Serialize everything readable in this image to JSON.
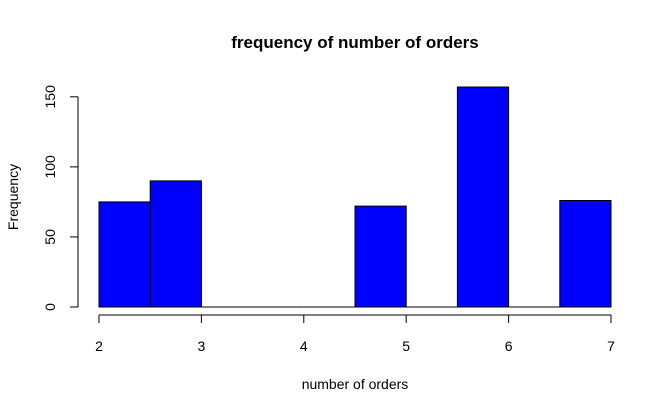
{
  "chart_data": {
    "type": "bar",
    "title": "frequency of number of orders",
    "xlabel": "number of orders",
    "ylabel": "Frequency",
    "bins": [
      {
        "start": 2.0,
        "end": 2.5,
        "value": 75
      },
      {
        "start": 2.5,
        "end": 3.0,
        "value": 90
      },
      {
        "start": 3.0,
        "end": 3.5,
        "value": 0
      },
      {
        "start": 3.5,
        "end": 4.0,
        "value": 0
      },
      {
        "start": 4.0,
        "end": 4.5,
        "value": 0
      },
      {
        "start": 4.5,
        "end": 5.0,
        "value": 72
      },
      {
        "start": 5.0,
        "end": 5.5,
        "value": 0
      },
      {
        "start": 5.5,
        "end": 6.0,
        "value": 157
      },
      {
        "start": 6.0,
        "end": 6.5,
        "value": 0
      },
      {
        "start": 6.5,
        "end": 7.0,
        "value": 76
      }
    ],
    "xlim": [
      2,
      7
    ],
    "ylim": [
      0,
      157
    ],
    "x_ticks": [
      "2",
      "3",
      "4",
      "5",
      "6",
      "7"
    ],
    "y_ticks": [
      "0",
      "50",
      "100",
      "150"
    ],
    "bar_color": "#0000ff",
    "bar_edge_color": "#000000",
    "grid": false,
    "legend": "none"
  }
}
